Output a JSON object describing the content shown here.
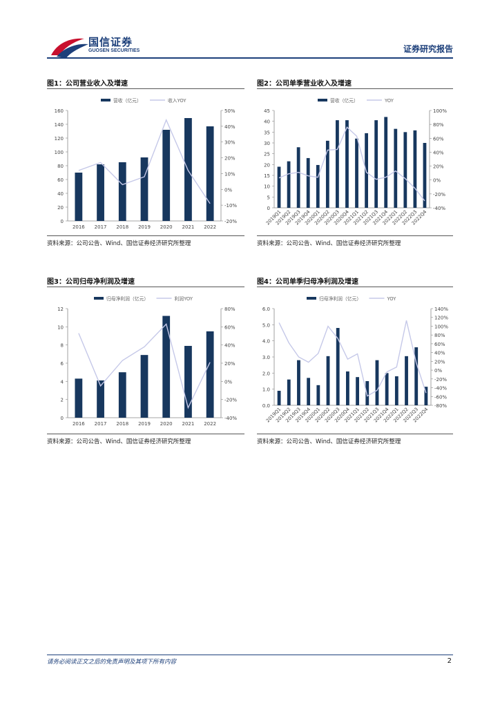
{
  "header": {
    "logo_cn": "国信证券",
    "logo_en": "GUOSEN SECURITIES",
    "report_type": "证券研究报告"
  },
  "colors": {
    "bar": "#17375e",
    "line": "#c5c8e8",
    "brand": "#1c3f7a",
    "logo_red": "#c8102e"
  },
  "figures": [
    {
      "title": "图1：公司营业收入及增速",
      "source": "资料来源：公司公告、Wind、国信证券经济研究所整理"
    },
    {
      "title": "图2：公司单季营业收入及增速",
      "source": "资料来源：公司公告、Wind、国信证券经济研究所整理"
    },
    {
      "title": "图3：公司归母净利润及增速",
      "source": "资料来源：公司公告、Wind、国信证券经济研究所整理"
    },
    {
      "title": "图4：公司单季归母净利润及增速",
      "source": "资料来源：公司公告、Wind、国信证券经济研究所整理"
    }
  ],
  "chart_data": [
    {
      "type": "bar",
      "title": "图1：公司营业收入及增速",
      "categories": [
        "2016",
        "2017",
        "2018",
        "2019",
        "2020",
        "2021",
        "2022"
      ],
      "series": [
        {
          "name": "营收（亿元）",
          "type": "bar",
          "axis": "left",
          "values": [
            70,
            82,
            85,
            92,
            132,
            149,
            137
          ]
        },
        {
          "name": "收入YOY",
          "type": "line",
          "axis": "right",
          "values": [
            0.12,
            0.17,
            0.03,
            0.08,
            0.44,
            0.12,
            -0.09
          ]
        }
      ],
      "ylim": [
        0,
        160
      ],
      "ystep": 20,
      "y2lim": [
        -0.2,
        0.5
      ],
      "y2step": 0.1,
      "y2format": "pct",
      "xlabel_rotate": false,
      "yticks": [
        "0",
        "20",
        "40",
        "60",
        "80",
        "100",
        "120",
        "140",
        "160"
      ],
      "y2ticks": [
        "-20%",
        "-10%",
        "0%",
        "10%",
        "20%",
        "30%",
        "40%",
        "50%"
      ]
    },
    {
      "type": "bar",
      "title": "图2：公司单季营业收入及增速",
      "categories": [
        "2019Q1",
        "2019Q2",
        "2019Q3",
        "2019Q4",
        "2020Q1",
        "2020Q2",
        "2020Q3",
        "2020Q4",
        "2021Q1",
        "2021Q2",
        "2021Q3",
        "2021Q4",
        "2022Q1",
        "2022Q2",
        "2022Q3",
        "2022Q4"
      ],
      "series": [
        {
          "name": "营收（亿元）",
          "type": "bar",
          "axis": "left",
          "values": [
            19,
            21.5,
            28,
            23,
            19.8,
            31,
            40.5,
            40.5,
            32,
            34.5,
            40.5,
            42,
            36.5,
            35,
            35.8,
            30
          ]
        },
        {
          "name": "YOY",
          "type": "line",
          "axis": "right",
          "values": [
            0.03,
            0.09,
            0.11,
            0.06,
            0.04,
            0.43,
            0.44,
            0.76,
            0.63,
            0.11,
            0.01,
            0.04,
            0.13,
            0.02,
            -0.12,
            -0.3
          ]
        }
      ],
      "ylim": [
        0,
        45
      ],
      "ystep": 5,
      "y2lim": [
        -0.4,
        1.0
      ],
      "y2step": 0.2,
      "y2format": "pct",
      "xlabel_rotate": true,
      "yticks": [
        "0",
        "5",
        "10",
        "15",
        "20",
        "25",
        "30",
        "35",
        "40",
        "45"
      ],
      "y2ticks": [
        "-40%",
        "-20%",
        "0%",
        "20%",
        "40%",
        "60%",
        "80%",
        "100%"
      ]
    },
    {
      "type": "bar",
      "title": "图3：公司归母净利润及增速",
      "categories": [
        "2016",
        "2017",
        "2018",
        "2019",
        "2020",
        "2021",
        "2022"
      ],
      "series": [
        {
          "name": "归母净利润（亿元）",
          "type": "bar",
          "axis": "left",
          "values": [
            4.3,
            4.1,
            5.0,
            6.9,
            11.2,
            7.9,
            9.5
          ]
        },
        {
          "name": "利润YOY",
          "type": "line",
          "axis": "right",
          "values": [
            0.53,
            -0.05,
            0.23,
            0.38,
            0.63,
            -0.29,
            0.21
          ]
        }
      ],
      "ylim": [
        0,
        12
      ],
      "ystep": 2,
      "y2lim": [
        -0.4,
        0.8
      ],
      "y2step": 0.2,
      "y2format": "pct",
      "xlabel_rotate": false,
      "yticks": [
        "0",
        "2",
        "4",
        "6",
        "8",
        "10",
        "12"
      ],
      "y2ticks": [
        "-40%",
        "-20%",
        "0%",
        "20%",
        "40%",
        "60%",
        "80%"
      ]
    },
    {
      "type": "bar",
      "title": "图4：公司单季归母净利润及增速",
      "categories": [
        "2019Q1",
        "2019Q2",
        "2019Q3",
        "2019Q4",
        "2020Q1",
        "2020Q2",
        "2020Q3",
        "2020Q4",
        "2021Q1",
        "2021Q2",
        "2021Q3",
        "2021Q4",
        "2022Q1",
        "2022Q2",
        "2022Q3",
        "2022Q4"
      ],
      "series": [
        {
          "name": "归母净利润（亿元）",
          "type": "bar",
          "axis": "left",
          "values": [
            0.9,
            1.6,
            2.8,
            1.7,
            1.25,
            3.05,
            4.8,
            2.1,
            1.75,
            1.5,
            2.8,
            2.0,
            1.8,
            3.05,
            3.6,
            1.15
          ]
        },
        {
          "name": "YOY",
          "type": "line",
          "axis": "right",
          "values": [
            1.08,
            0.62,
            0.3,
            0.18,
            0.38,
            1.0,
            0.72,
            0.25,
            0.37,
            -0.59,
            -0.46,
            -0.04,
            0.07,
            1.13,
            0.17,
            -0.52
          ]
        }
      ],
      "ylim": [
        0,
        6
      ],
      "ystep": 1,
      "y2lim": [
        -0.8,
        1.4
      ],
      "y2step": 0.2,
      "y2format": "pct",
      "xlabel_rotate": true,
      "yticks": [
        "0.0",
        "1.0",
        "2.0",
        "3.0",
        "4.0",
        "5.0",
        "6.0"
      ],
      "y2ticks": [
        "-80%",
        "-60%",
        "-40%",
        "-20%",
        "0%",
        "20%",
        "40%",
        "60%",
        "80%",
        "100%",
        "120%",
        "140%"
      ]
    }
  ],
  "footer": {
    "disclaimer": "请务必阅读正文之后的免责声明及其项下所有内容",
    "page": "2"
  }
}
